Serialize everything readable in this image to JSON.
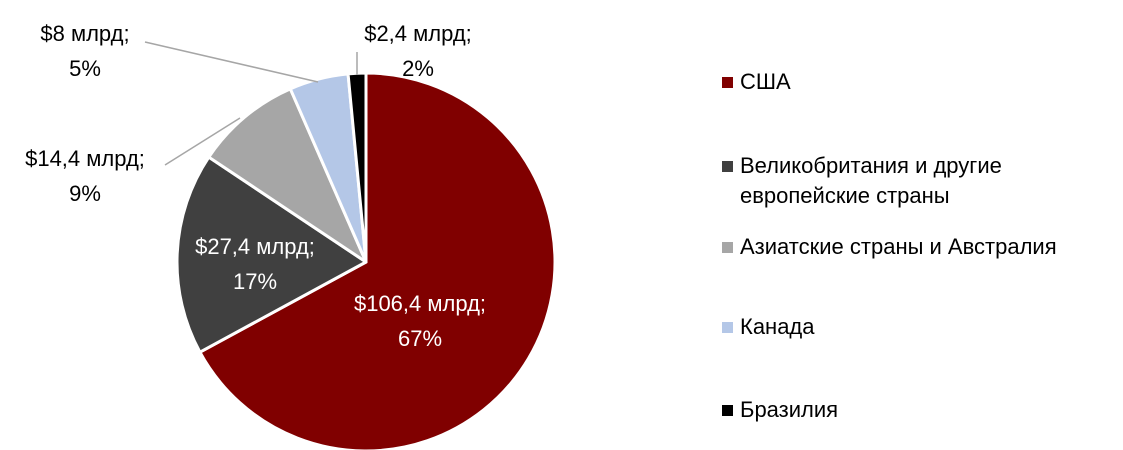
{
  "chart_data": {
    "type": "pie",
    "categories": [
      "США",
      "Великобритания и другие европейские страны",
      "Азиатские страны и Австралия",
      "Канада",
      "Бразилия"
    ],
    "values": [
      106.4,
      27.4,
      14.4,
      8,
      2.4
    ],
    "value_labels": [
      "$106,4 млрд;",
      "$27,4 млрд;",
      "$14,4 млрд;",
      "$8 млрд;",
      "$2,4 млрд;"
    ],
    "shares": [
      67,
      17,
      9,
      5,
      2
    ],
    "share_labels": [
      "67%",
      "17%",
      "9%",
      "5%",
      "2%"
    ],
    "colors": [
      "#800000",
      "#404040",
      "#a6a6a6",
      "#b4c7e7",
      "#000000"
    ],
    "legend": "right"
  }
}
